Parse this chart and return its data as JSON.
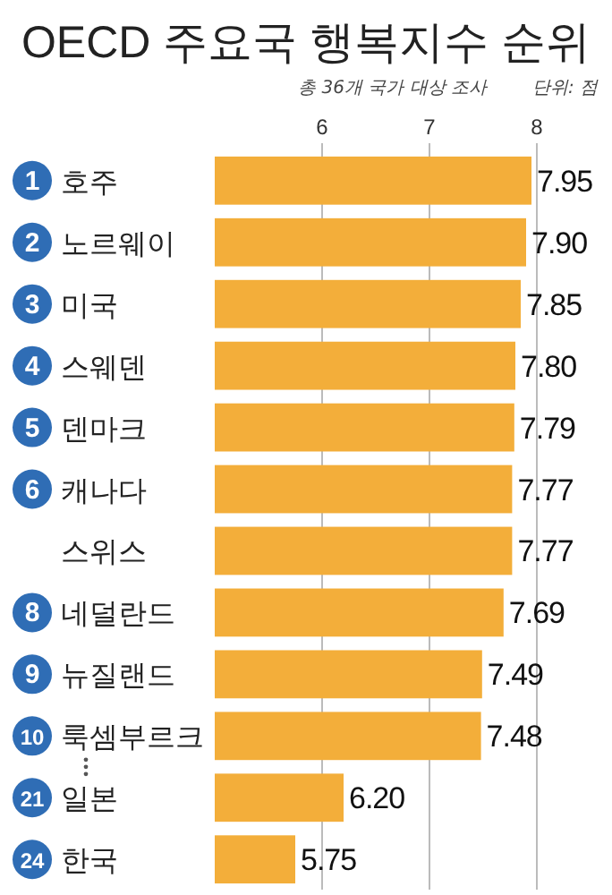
{
  "chart_data": {
    "type": "bar",
    "orientation": "horizontal",
    "title": "OECD 주요국 행복지수 순위",
    "subtitle": "총 36개 국가 대상 조사",
    "annotations": [
      "단위: 점",
      "1",
      "2",
      "3",
      "4",
      "5",
      "6",
      "8",
      "9",
      "10",
      "21",
      "24"
    ],
    "categories": [
      "호주",
      "노르웨이",
      "미국",
      "스웨덴",
      "덴마크",
      "캐나다",
      "스위스",
      "네덜란드",
      "뉴질랜드",
      "룩셈부르크",
      "일본",
      "한국"
    ],
    "values": [
      7.95,
      7.9,
      7.85,
      7.8,
      7.79,
      7.77,
      7.77,
      7.69,
      7.49,
      7.48,
      6.2,
      5.75
    ],
    "color": "#f3ae3a",
    "xlim": [
      5,
      8
    ],
    "value_labels": [
      "7.95",
      "7.90",
      "7.85",
      "7.80",
      "7.79",
      "7.77",
      "7.77",
      "7.69",
      "7.49",
      "7.48",
      "6.20",
      "5.75"
    ],
    "xticks": [
      6,
      7,
      8
    ],
    "grid": "x"
  }
}
